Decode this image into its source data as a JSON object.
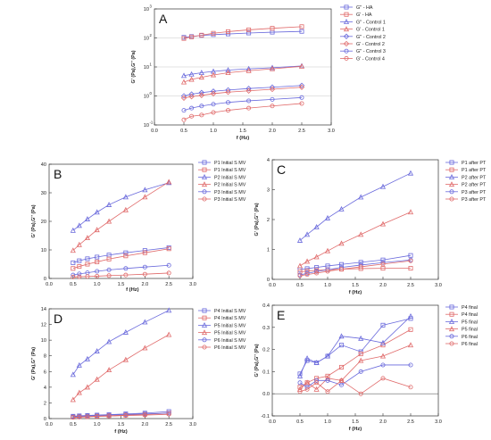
{
  "chart_data": [
    {
      "panel": "A",
      "type": "line",
      "xlabel": "f (Hz)",
      "ylabel": "G' (Pa),G'' (Pa)",
      "xlim": [
        0,
        3
      ],
      "ylim": [
        0.1,
        1000
      ],
      "yscale": "log",
      "xticks": [
        "0.0",
        "0.5",
        "1.0",
        "1.5",
        "2.0",
        "2.5",
        "3.0"
      ],
      "yticks": [
        {
          "v": 0.1,
          "t": "10",
          "e": "-1"
        },
        {
          "v": 1,
          "t": "10",
          "e": "0"
        },
        {
          "v": 10,
          "t": "10",
          "e": "1"
        },
        {
          "v": 100,
          "t": "10",
          "e": "2"
        },
        {
          "v": 1000,
          "t": "10",
          "e": "3"
        }
      ],
      "hlines": [
        1,
        10,
        100
      ],
      "x": [
        0.5,
        0.63,
        0.8,
        1.0,
        1.25,
        1.6,
        2.0,
        2.5
      ],
      "series": [
        {
          "name": "G'' - HA",
          "color": "#6a6adc",
          "marker": "square",
          "values": [
            105,
            112,
            122,
            130,
            137,
            148,
            158,
            168
          ]
        },
        {
          "name": "G' - HA",
          "color": "#e06a6a",
          "marker": "square",
          "values": [
            96,
            108,
            125,
            145,
            165,
            190,
            215,
            245
          ]
        },
        {
          "name": "G'' - Control 1",
          "color": "#6a6adc",
          "marker": "triangle",
          "values": [
            5.0,
            5.6,
            6.3,
            7.0,
            7.8,
            8.6,
            9.4,
            10.8
          ]
        },
        {
          "name": "G' - Control 1",
          "color": "#e06a6a",
          "marker": "triangle",
          "values": [
            3.0,
            3.7,
            4.4,
            5.3,
            6.3,
            7.4,
            8.6,
            10.5
          ]
        },
        {
          "name": "G'' - Control 2",
          "color": "#6a6adc",
          "marker": "diamond",
          "values": [
            1.0,
            1.15,
            1.3,
            1.45,
            1.6,
            1.8,
            2.0,
            2.3
          ]
        },
        {
          "name": "G' - Control 2",
          "color": "#e06a6a",
          "marker": "diamond",
          "values": [
            0.85,
            0.95,
            1.05,
            1.2,
            1.35,
            1.5,
            1.7,
            2.0
          ]
        },
        {
          "name": "G'' - Control 3",
          "color": "#6a6adc",
          "marker": "circle",
          "values": [
            0.32,
            0.38,
            0.45,
            0.52,
            0.6,
            0.68,
            0.76,
            0.88
          ]
        },
        {
          "name": "G' - Control 4",
          "color": "#e06a6a",
          "marker": "circle",
          "values": [
            0.15,
            0.2,
            0.22,
            0.27,
            0.32,
            0.38,
            0.45,
            0.55
          ]
        }
      ]
    },
    {
      "panel": "B",
      "type": "line",
      "xlabel": "f (Hz)",
      "ylabel": "G' (Pa),G'' (Pa)",
      "xlim": [
        0,
        3
      ],
      "ylim": [
        0,
        40
      ],
      "xticks": [
        "0.0",
        "0.5",
        "1.0",
        "1.5",
        "2.0",
        "2.5",
        "3.0"
      ],
      "yticks": [
        "0",
        "10",
        "20",
        "30",
        "40"
      ],
      "x": [
        0.5,
        0.63,
        0.8,
        1.0,
        1.25,
        1.6,
        2.0,
        2.5
      ],
      "series": [
        {
          "name": "P1 Initial S MV",
          "color": "#6a6adc",
          "marker": "square",
          "values": [
            5.5,
            6.2,
            6.9,
            7.5,
            8.2,
            9.0,
            9.8,
            10.8
          ]
        },
        {
          "name": "P1 Initial S MV",
          "color": "#e06a6a",
          "marker": "square",
          "values": [
            3.5,
            4.2,
            5.0,
            5.8,
            6.8,
            7.9,
            9.0,
            10.4
          ]
        },
        {
          "name": "P2 Initial S MV",
          "color": "#6a6adc",
          "marker": "triangle",
          "values": [
            16.8,
            18.5,
            20.8,
            23.2,
            25.8,
            28.5,
            31.0,
            33.5
          ]
        },
        {
          "name": "P2 Initial S MV",
          "color": "#e06a6a",
          "marker": "triangle",
          "values": [
            9.8,
            11.8,
            14.2,
            17.0,
            20.0,
            24.0,
            28.5,
            33.8
          ]
        },
        {
          "name": "P3 Initial S MV",
          "color": "#6a6adc",
          "marker": "circle",
          "values": [
            1.2,
            1.6,
            2.0,
            2.5,
            3.0,
            3.5,
            4.0,
            4.6
          ]
        },
        {
          "name": "P3 Initial S MV",
          "color": "#e06a6a",
          "marker": "circle",
          "values": [
            0.5,
            0.6,
            0.7,
            0.8,
            1.0,
            1.2,
            1.5,
            1.9
          ]
        }
      ]
    },
    {
      "panel": "C",
      "type": "line",
      "xlabel": "f (Hz)",
      "ylabel": "G' (Pa),G'' (Pa)",
      "xlim": [
        0,
        3
      ],
      "ylim": [
        0,
        4
      ],
      "xticks": [
        "0.0",
        "0.5",
        "1.0",
        "1.5",
        "2.0",
        "2.5",
        "3.0"
      ],
      "yticks": [
        "0",
        "1",
        "2",
        "3",
        "4"
      ],
      "x": [
        0.5,
        0.63,
        0.8,
        1.0,
        1.25,
        1.6,
        2.0,
        2.5
      ],
      "series": [
        {
          "name": "P1 after PT",
          "color": "#6a6adc",
          "marker": "square",
          "values": [
            0.32,
            0.36,
            0.4,
            0.45,
            0.5,
            0.57,
            0.65,
            0.8
          ]
        },
        {
          "name": "P1 after PT",
          "color": "#e06a6a",
          "marker": "square",
          "values": [
            0.25,
            0.28,
            0.3,
            0.32,
            0.34,
            0.36,
            0.37,
            0.37
          ]
        },
        {
          "name": "P2 after PT",
          "color": "#6a6adc",
          "marker": "triangle",
          "values": [
            1.3,
            1.5,
            1.75,
            2.05,
            2.35,
            2.75,
            3.1,
            3.55
          ]
        },
        {
          "name": "P2 after PT",
          "color": "#e06a6a",
          "marker": "triangle",
          "values": [
            0.45,
            0.6,
            0.75,
            0.95,
            1.2,
            1.5,
            1.85,
            2.25
          ]
        },
        {
          "name": "P3 after PT",
          "color": "#6a6adc",
          "marker": "circle",
          "values": [
            0.15,
            0.2,
            0.26,
            0.32,
            0.4,
            0.48,
            0.56,
            0.65
          ]
        },
        {
          "name": "P3 after PT",
          "color": "#e06a6a",
          "marker": "circle",
          "values": [
            0.12,
            0.16,
            0.21,
            0.27,
            0.34,
            0.42,
            0.51,
            0.62
          ]
        }
      ]
    },
    {
      "panel": "D",
      "type": "line",
      "xlabel": "f (Hz)",
      "ylabel": "G' (Pa),G'' (Pa)",
      "xlim": [
        0,
        3
      ],
      "ylim": [
        0,
        14
      ],
      "xticks": [
        "0.0",
        "0.5",
        "1.0",
        "1.5",
        "2.0",
        "2.5",
        "3.0"
      ],
      "yticks": [
        "0",
        "2",
        "4",
        "6",
        "8",
        "10",
        "12",
        "14"
      ],
      "x": [
        0.5,
        0.63,
        0.8,
        1.0,
        1.25,
        1.6,
        2.0,
        2.5
      ],
      "series": [
        {
          "name": "P4 Initial S MV",
          "color": "#6a6adc",
          "marker": "square",
          "values": [
            0.3,
            0.35,
            0.4,
            0.45,
            0.5,
            0.6,
            0.7,
            0.9
          ]
        },
        {
          "name": "P4 Initial S MV",
          "color": "#e06a6a",
          "marker": "square",
          "values": [
            0.2,
            0.23,
            0.27,
            0.32,
            0.38,
            0.45,
            0.55,
            0.7
          ]
        },
        {
          "name": "P5 Initial S MV",
          "color": "#6a6adc",
          "marker": "triangle",
          "values": [
            5.6,
            6.8,
            7.6,
            8.6,
            9.8,
            11.0,
            12.3,
            13.8
          ]
        },
        {
          "name": "P5 Initial S MV",
          "color": "#e06a6a",
          "marker": "triangle",
          "values": [
            2.4,
            3.3,
            4.0,
            5.0,
            6.2,
            7.5,
            9.0,
            10.7
          ]
        },
        {
          "name": "P6 Initial S MV",
          "color": "#6a6adc",
          "marker": "circle",
          "values": [
            0.25,
            0.3,
            0.35,
            0.4,
            0.46,
            0.53,
            0.6,
            0.7
          ]
        },
        {
          "name": "P6 Initial S MV",
          "color": "#e06a6a",
          "marker": "circle",
          "values": [
            0.15,
            0.18,
            0.22,
            0.27,
            0.32,
            0.38,
            0.45,
            0.55
          ]
        }
      ]
    },
    {
      "panel": "E",
      "type": "line",
      "xlabel": "f (Hz)",
      "ylabel": "G' (Pa),G'' (Pa)",
      "xlim": [
        0,
        3
      ],
      "ylim": [
        -0.1,
        0.4
      ],
      "xticks": [
        "0.0",
        "0.5",
        "1.0",
        "1.5",
        "2.0",
        "2.5",
        "3.0"
      ],
      "yticks": [
        "-0.1",
        "0.0",
        "0.1",
        "0.2",
        "0.3",
        "0.4"
      ],
      "hlines": [
        0
      ],
      "x": [
        0.5,
        0.63,
        0.8,
        1.0,
        1.25,
        1.6,
        2.0,
        2.5
      ],
      "series": [
        {
          "name": "P4 final",
          "color": "#6a6adc",
          "marker": "square",
          "values": [
            0.09,
            0.15,
            0.14,
            0.17,
            0.22,
            0.19,
            0.31,
            0.34
          ]
        },
        {
          "name": "P4 final",
          "color": "#e06a6a",
          "marker": "square",
          "values": [
            0.03,
            0.05,
            0.07,
            0.08,
            0.12,
            0.18,
            0.22,
            0.29
          ]
        },
        {
          "name": "P5 final",
          "color": "#6a6adc",
          "marker": "triangle",
          "values": [
            0.08,
            0.16,
            0.14,
            0.17,
            0.26,
            0.25,
            0.23,
            0.35
          ]
        },
        {
          "name": "P5 final",
          "color": "#e06a6a",
          "marker": "triangle",
          "values": [
            0.02,
            0.05,
            0.02,
            0.07,
            0.06,
            0.15,
            0.17,
            0.22
          ]
        },
        {
          "name": "P6 final",
          "color": "#6a6adc",
          "marker": "circle",
          "values": [
            0.05,
            0.03,
            0.06,
            0.06,
            0.04,
            0.1,
            0.13,
            0.13
          ]
        },
        {
          "name": "P6 final",
          "color": "#e06a6a",
          "marker": "circle",
          "values": [
            0.01,
            0.02,
            0.05,
            0.01,
            0.06,
            0.0,
            0.07,
            0.03
          ]
        }
      ]
    }
  ]
}
